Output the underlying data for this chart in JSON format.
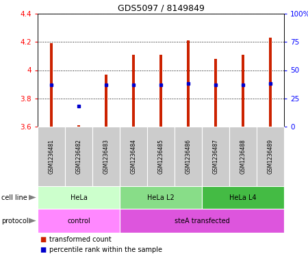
{
  "title": "GDS5097 / 8149849",
  "samples": [
    "GSM1236481",
    "GSM1236482",
    "GSM1236483",
    "GSM1236484",
    "GSM1236485",
    "GSM1236486",
    "GSM1236487",
    "GSM1236488",
    "GSM1236489"
  ],
  "transformed_counts": [
    4.19,
    3.61,
    3.97,
    4.11,
    4.11,
    4.21,
    4.08,
    4.11,
    4.23
  ],
  "percentile_ranks": [
    37,
    18,
    37,
    37,
    37,
    38,
    37,
    37,
    38
  ],
  "ylim_left": [
    3.6,
    4.4
  ],
  "ylim_right": [
    0,
    100
  ],
  "yticks_left": [
    3.6,
    3.8,
    4.0,
    4.2,
    4.4
  ],
  "ytick_labels_left": [
    "3.6",
    "3.8",
    "4",
    "4.2",
    "4.4"
  ],
  "yticks_right": [
    0,
    25,
    50,
    75,
    100
  ],
  "ytick_labels_right": [
    "0",
    "25",
    "50",
    "75",
    "100%"
  ],
  "cell_line_groups": [
    {
      "label": "HeLa",
      "start": 0,
      "end": 3,
      "color": "#ccffcc"
    },
    {
      "label": "HeLa L2",
      "start": 3,
      "end": 6,
      "color": "#88dd88"
    },
    {
      "label": "HeLa L4",
      "start": 6,
      "end": 9,
      "color": "#44bb44"
    }
  ],
  "protocol_groups": [
    {
      "label": "control",
      "start": 0,
      "end": 3,
      "color": "#ff88ff"
    },
    {
      "label": "steA transfected",
      "start": 3,
      "end": 9,
      "color": "#dd55dd"
    }
  ],
  "bar_color": "#cc2200",
  "dot_color": "#0000cc",
  "bar_bottom": 3.6,
  "background_color": "#ffffff",
  "sample_bg_color": "#cccccc"
}
